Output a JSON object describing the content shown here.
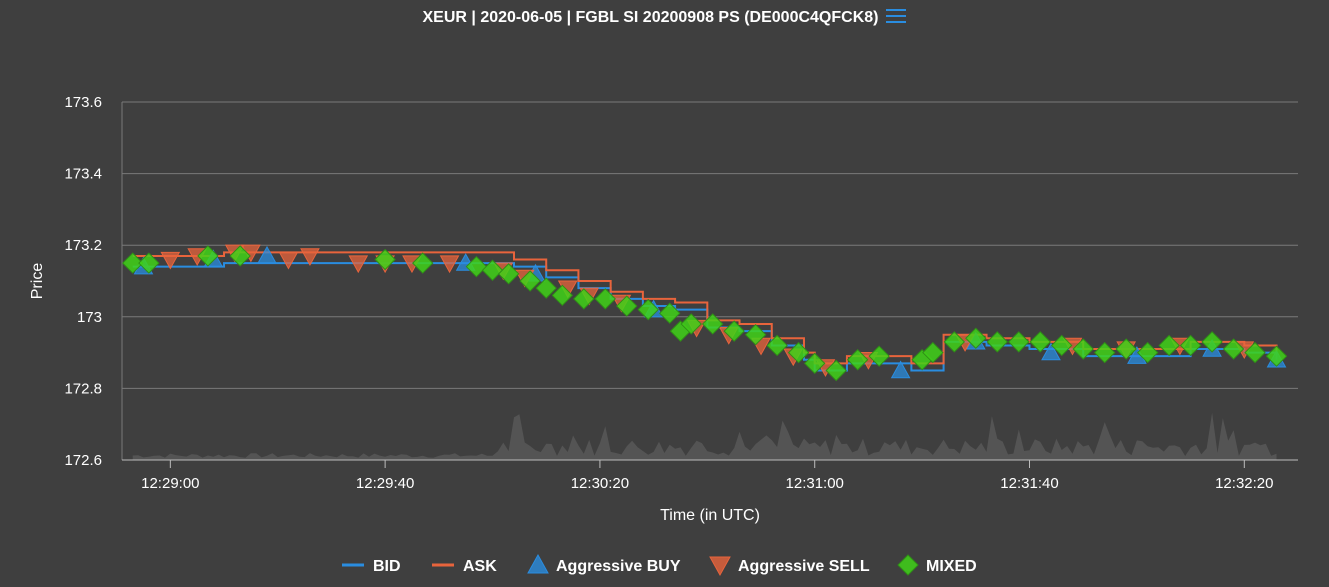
{
  "title": "XEUR | 2020-06-05 | FGBL SI 20200908 PS (DE000C4QFCK8)",
  "menu_icon": "hamburger-menu-icon",
  "colors": {
    "background": "#3f3f3f",
    "grid": "#7a7a7a",
    "bid": "#2a8de0",
    "ask": "#e8643c",
    "aggressive_buy": "#2a8de0",
    "aggressive_sell": "#e8643c",
    "mixed": "#3fd218",
    "volume": "#5a5a5a"
  },
  "chart_data": {
    "type": "line",
    "xlabel": "Time (in UTC)",
    "ylabel": "Price",
    "xlim": [
      "12:28:51",
      "12:32:30"
    ],
    "ylim": [
      172.6,
      173.6
    ],
    "grid": true,
    "legend_position": "bottom",
    "x_ticks": [
      "12:29:00",
      "12:29:40",
      "12:30:20",
      "12:31:00",
      "12:31:40",
      "12:32:20"
    ],
    "y_ticks": [
      172.6,
      172.8,
      173,
      173.2,
      173.4,
      173.6
    ],
    "y_tick_labels": [
      "172.6",
      "172.8",
      "173",
      "173.2",
      "173.4",
      "173.6"
    ],
    "legend": [
      "BID",
      "ASK",
      "Aggressive BUY",
      "Aggressive SELL",
      "MIXED"
    ],
    "series": [
      {
        "name": "BID",
        "x": [
          "12:28:53",
          "12:29:10",
          "12:29:30",
          "12:29:50",
          "12:30:04",
          "12:30:10",
          "12:30:16",
          "12:30:22",
          "12:30:28",
          "12:30:34",
          "12:30:40",
          "12:30:46",
          "12:30:52",
          "12:30:58",
          "12:31:00",
          "12:31:06",
          "12:31:14",
          "12:31:18",
          "12:31:24",
          "12:31:32",
          "12:31:40",
          "12:31:50",
          "12:32:00",
          "12:32:10",
          "12:32:20",
          "12:32:26"
        ],
        "y": [
          173.14,
          173.15,
          173.15,
          173.15,
          173.14,
          173.11,
          173.08,
          173.05,
          173.03,
          173.02,
          172.97,
          172.96,
          172.92,
          172.88,
          172.85,
          172.87,
          172.87,
          172.85,
          172.93,
          172.92,
          172.91,
          172.89,
          172.89,
          172.91,
          172.9,
          172.88
        ]
      },
      {
        "name": "ASK",
        "x": [
          "12:28:53",
          "12:29:10",
          "12:29:30",
          "12:29:50",
          "12:30:04",
          "12:30:10",
          "12:30:16",
          "12:30:22",
          "12:30:28",
          "12:30:34",
          "12:30:40",
          "12:30:46",
          "12:30:52",
          "12:30:58",
          "12:31:00",
          "12:31:06",
          "12:31:14",
          "12:31:18",
          "12:31:24",
          "12:31:32",
          "12:31:40",
          "12:31:50",
          "12:32:00",
          "12:32:10",
          "12:32:20",
          "12:32:26"
        ],
        "y": [
          173.17,
          173.18,
          173.18,
          173.18,
          173.16,
          173.13,
          173.1,
          173.07,
          173.05,
          173.04,
          172.99,
          172.98,
          172.94,
          172.9,
          172.87,
          172.89,
          172.89,
          172.87,
          172.95,
          172.94,
          172.93,
          172.91,
          172.91,
          172.93,
          172.92,
          172.9
        ]
      }
    ],
    "markers": {
      "aggressive_buy": {
        "x": [
          "12:28:55",
          "12:29:08",
          "12:29:18",
          "12:29:55",
          "12:30:08",
          "12:30:30",
          "12:31:16",
          "12:31:30",
          "12:31:44",
          "12:32:00",
          "12:32:14",
          "12:32:26"
        ],
        "y": [
          173.14,
          173.16,
          173.17,
          173.15,
          173.12,
          173.02,
          172.85,
          172.93,
          172.9,
          172.89,
          172.91,
          172.88
        ]
      },
      "aggressive_sell": {
        "x": [
          "12:29:00",
          "12:29:05",
          "12:29:12",
          "12:29:15",
          "12:29:22",
          "12:29:26",
          "12:29:35",
          "12:29:40",
          "12:29:45",
          "12:29:52",
          "12:30:02",
          "12:30:06",
          "12:30:14",
          "12:30:18",
          "12:30:24",
          "12:30:38",
          "12:30:44",
          "12:30:50",
          "12:30:56",
          "12:31:02",
          "12:31:10",
          "12:31:28",
          "12:31:48",
          "12:31:58",
          "12:32:08",
          "12:32:20"
        ],
        "y": [
          173.16,
          173.17,
          173.18,
          173.18,
          173.16,
          173.17,
          173.15,
          173.15,
          173.15,
          173.15,
          173.13,
          173.11,
          173.08,
          173.06,
          173.04,
          172.97,
          172.95,
          172.92,
          172.89,
          172.86,
          172.88,
          172.93,
          172.92,
          172.91,
          172.92,
          172.91
        ]
      },
      "mixed": {
        "x": [
          "12:28:53",
          "12:28:56",
          "12:29:07",
          "12:29:13",
          "12:29:40",
          "12:29:47",
          "12:29:57",
          "12:30:00",
          "12:30:03",
          "12:30:07",
          "12:30:10",
          "12:30:13",
          "12:30:17",
          "12:30:21",
          "12:30:25",
          "12:30:29",
          "12:30:33",
          "12:30:35",
          "12:30:37",
          "12:30:41",
          "12:30:45",
          "12:30:49",
          "12:30:53",
          "12:30:57",
          "12:31:00",
          "12:31:04",
          "12:31:08",
          "12:31:12",
          "12:31:20",
          "12:31:22",
          "12:31:26",
          "12:31:30",
          "12:31:34",
          "12:31:38",
          "12:31:42",
          "12:31:46",
          "12:31:50",
          "12:31:54",
          "12:31:58",
          "12:32:02",
          "12:32:06",
          "12:32:10",
          "12:32:14",
          "12:32:18",
          "12:32:22",
          "12:32:26"
        ],
        "y": [
          173.15,
          173.15,
          173.17,
          173.17,
          173.16,
          173.15,
          173.14,
          173.13,
          173.12,
          173.1,
          173.08,
          173.06,
          173.05,
          173.05,
          173.03,
          173.02,
          173.01,
          172.96,
          172.98,
          172.98,
          172.96,
          172.95,
          172.92,
          172.9,
          172.87,
          172.85,
          172.88,
          172.89,
          172.88,
          172.9,
          172.93,
          172.94,
          172.93,
          172.93,
          172.93,
          172.92,
          172.91,
          172.9,
          172.91,
          172.9,
          172.92,
          172.92,
          172.93,
          172.91,
          172.9,
          172.89
        ]
      }
    }
  }
}
